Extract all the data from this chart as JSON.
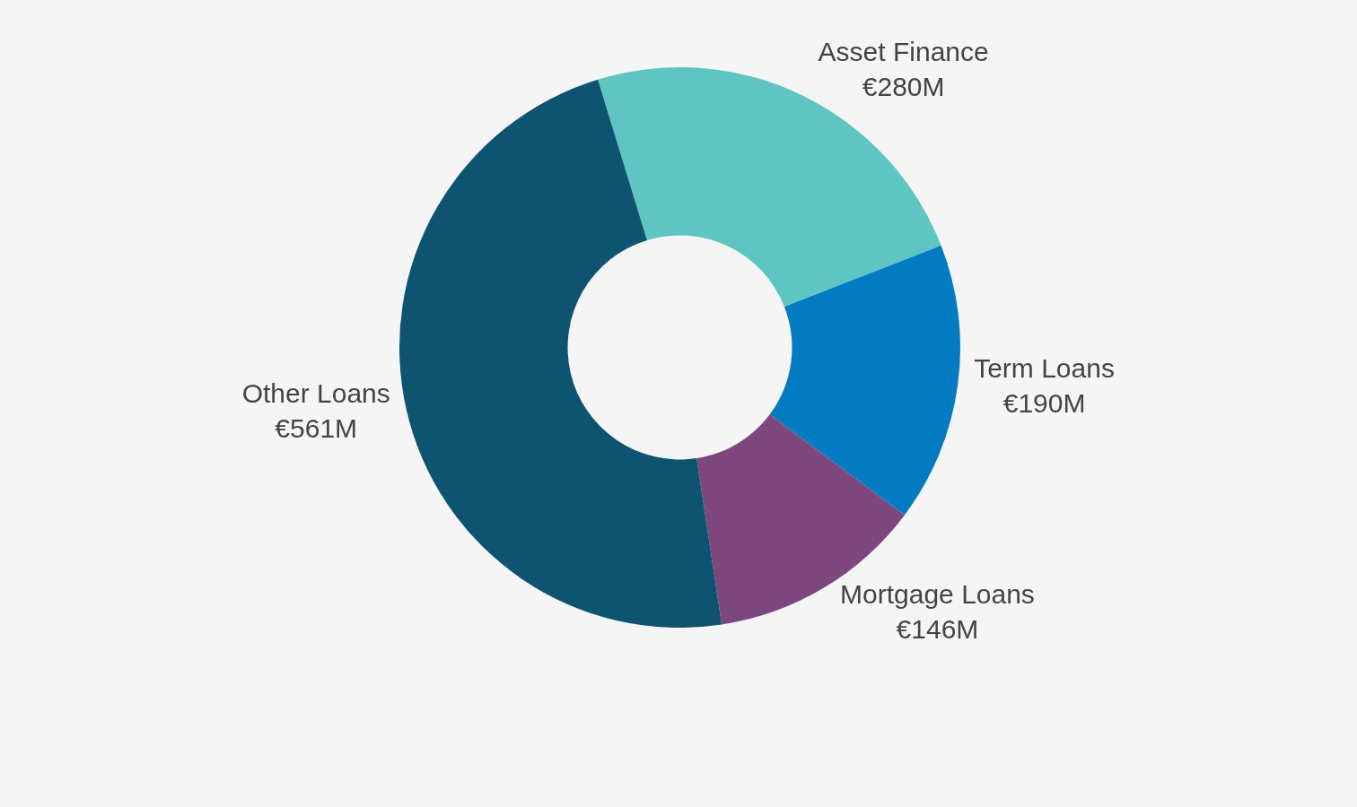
{
  "chart_data": {
    "type": "donut",
    "categories": [
      "Asset Finance",
      "Term Loans",
      "Mortgage Loans",
      "Other Loans"
    ],
    "values": [
      280,
      190,
      146,
      561
    ],
    "value_labels": [
      "€280M",
      "€190M",
      "€146M",
      "€561M"
    ],
    "colors": [
      "#5ec5c3",
      "#037bc3",
      "#7d477d",
      "#0e5370"
    ],
    "legend": false
  }
}
